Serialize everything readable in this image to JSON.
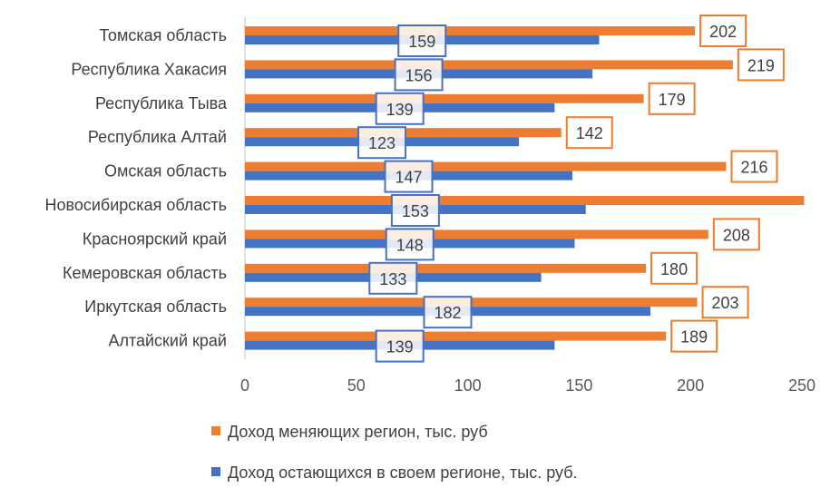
{
  "chart_data": {
    "type": "bar",
    "orientation": "horizontal",
    "title": "",
    "xlabel": "",
    "ylabel": "",
    "xlim": [
      0,
      250
    ],
    "x_ticks": [
      "0",
      "50",
      "100",
      "150",
      "200",
      "250"
    ],
    "grid": false,
    "legend_placement": "bottom",
    "categories": [
      "Томская область",
      "Республика Хакасия",
      "Республика Тыва",
      "Республика Алтай",
      "Омская область",
      "Новосибирская область",
      "Красноярский край",
      "Кемеровская область",
      "Иркутская область",
      "Алтайский край"
    ],
    "series": [
      {
        "name": "Доход меняющих регион, тыс. руб",
        "color": "#ED7D31",
        "values": [
          202,
          219,
          179,
          142,
          216,
          251,
          208,
          180,
          203,
          189
        ],
        "labels": [
          "202",
          "219",
          "179",
          "142",
          "216",
          null,
          "208",
          "180",
          "203",
          "189"
        ]
      },
      {
        "name": "Доход остающихся в своем регионе, тыс. руб.",
        "color": "#4472C4",
        "values": [
          159,
          156,
          139,
          123,
          147,
          153,
          148,
          133,
          182,
          139
        ],
        "labels": [
          "159",
          "156",
          "139",
          "123",
          "147",
          "153",
          "148",
          "133",
          "182",
          "139"
        ]
      }
    ]
  }
}
